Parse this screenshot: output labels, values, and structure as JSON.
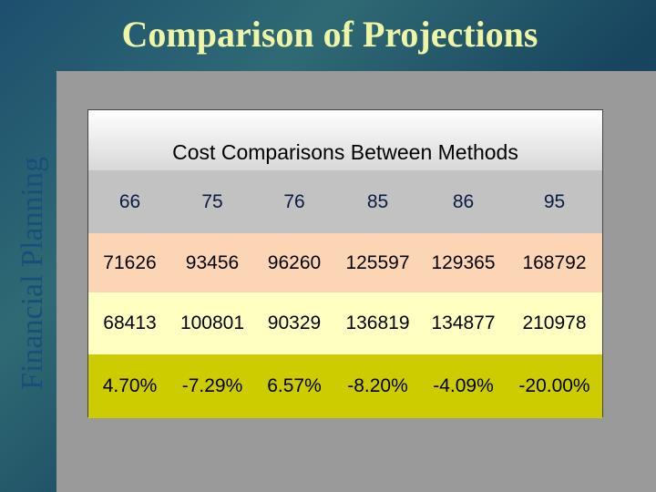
{
  "header": {
    "title": "Comparison of Projections",
    "side_text": "Financial Planning"
  },
  "table": {
    "title": "Cost Comparisons Between Methods",
    "columns": [
      "66",
      "75",
      "76",
      "85",
      "86",
      "95"
    ],
    "rows": [
      [
        "71626",
        "93456",
        "96260",
        "125597",
        "129365",
        "168792"
      ],
      [
        "68413",
        "100801",
        "90329",
        "136819",
        "134877",
        "210978"
      ],
      [
        "4.70%",
        "-7.29%",
        "6.57%",
        "-8.20%",
        "-4.09%",
        "-20.00%"
      ]
    ]
  }
}
